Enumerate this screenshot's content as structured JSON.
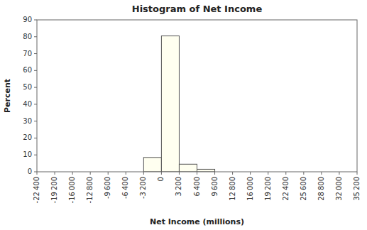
{
  "chart_data": {
    "type": "histogram",
    "title": "Histogram of Net Income",
    "x_label": "Net Income (millions)",
    "y_label": "Percent",
    "bins": [
      -3200,
      0,
      3200,
      6400,
      9600
    ],
    "values": [
      8.5,
      80.5,
      4.5,
      1.5
    ],
    "color": "#fffff0",
    "xlim": [
      -22400,
      35200
    ],
    "ylim": [
      0,
      90
    ],
    "xticks": [
      {
        "value": -22400,
        "label": "-22 400"
      },
      {
        "value": -19200,
        "label": "-19 200"
      },
      {
        "value": -16000,
        "label": "-16 000"
      },
      {
        "value": -12800,
        "label": "-12 800"
      },
      {
        "value": -9600,
        "label": "-9 600"
      },
      {
        "value": -6400,
        "label": "-6 400"
      },
      {
        "value": -3200,
        "label": "-3 200"
      },
      0,
      {
        "value": 3200,
        "label": "3 200"
      },
      {
        "value": 6400,
        "label": "6 400"
      },
      {
        "value": 9600,
        "label": "9 600"
      },
      {
        "value": 12800,
        "label": "12 800"
      },
      {
        "value": 16000,
        "label": "16 000"
      },
      {
        "value": 19200,
        "label": "19 200"
      },
      {
        "value": 22400,
        "label": "22 400"
      },
      {
        "value": 25600,
        "label": "25 600"
      },
      {
        "value": 28800,
        "label": "28 800"
      },
      {
        "value": 32000,
        "label": "32 000"
      },
      {
        "value": 35200,
        "label": "35 200"
      }
    ],
    "yticks": [
      0,
      10,
      20,
      30,
      40,
      50,
      60,
      70,
      80,
      90
    ],
    "grid": false
  }
}
